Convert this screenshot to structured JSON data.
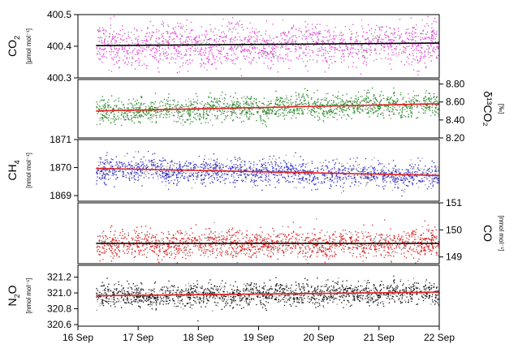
{
  "chart_data": [
    {
      "type": "scatter",
      "panel": "co2",
      "ylabel": "CO",
      "ylabel_subscript": "2",
      "unit": "[µmol mol⁻¹]",
      "axis_side": "left",
      "ylim": [
        400.3,
        400.5
      ],
      "yticks": [
        "400.3",
        "400.4",
        "400.5"
      ],
      "mean_fit": [
        [
          0.3,
          400.402
        ],
        [
          6.0,
          400.41
        ]
      ],
      "point_spread": 0.06,
      "colors": {
        "points_primary": "#e83fd9",
        "points_secondary": "#9a9a9a",
        "fit": "#000000"
      }
    },
    {
      "type": "scatter",
      "panel": "d13co2",
      "ylabel": "δ¹³CO₂",
      "unit": "[‰]",
      "axis_side": "right",
      "ylim": [
        8.2,
        8.85
      ],
      "yticks": [
        "8.20",
        "8.40",
        "8.60",
        "8.80"
      ],
      "mean_fit": [
        [
          0.3,
          8.5
        ],
        [
          6.0,
          8.58
        ]
      ],
      "point_spread": 0.12,
      "colors": {
        "points_primary": "#1e8a1e",
        "points_secondary": "#8a8a8a",
        "fit": "#e02020"
      }
    },
    {
      "type": "scatter",
      "panel": "ch4",
      "ylabel": "CH",
      "ylabel_subscript": "4",
      "unit": "[nmol mol⁻¹]",
      "axis_side": "left",
      "ylim": [
        1868.8,
        1871.0
      ],
      "yticks": [
        "1869",
        "1870",
        "1871"
      ],
      "mean_fit": [
        [
          0.3,
          1869.97
        ],
        [
          6.0,
          1869.72
        ]
      ],
      "point_spread": 0.4,
      "colors": {
        "points_primary": "#2c2cc8",
        "points_secondary": "#9a9a9a",
        "fit": "#e02020"
      }
    },
    {
      "type": "scatter",
      "panel": "co",
      "ylabel": "CO",
      "unit": "[nmol mol⁻¹]",
      "axis_side": "right",
      "ylim": [
        148.75,
        151.0
      ],
      "yticks": [
        "149",
        "150",
        "151"
      ],
      "mean_fit": [
        [
          0.3,
          149.5
        ],
        [
          6.0,
          149.5
        ]
      ],
      "point_spread": 0.45,
      "colors": {
        "points_primary": "#e41a1a",
        "points_secondary": "#8a8a8a",
        "fit": "#000000"
      }
    },
    {
      "type": "scatter",
      "panel": "n2o",
      "ylabel": "N",
      "ylabel_subscript": "2",
      "ylabel_suffix": "O",
      "unit": "[nmol mol⁻¹]",
      "axis_side": "left",
      "ylim": [
        320.58,
        321.35
      ],
      "yticks": [
        "320.6",
        "320.8",
        "321.0",
        "321.2"
      ],
      "mean_fit": [
        [
          0.3,
          320.965
        ],
        [
          6.0,
          321.01
        ]
      ],
      "point_spread": 0.13,
      "colors": {
        "points_primary": "#111111",
        "points_secondary": "#8a8a8a",
        "fit": "#e02020"
      }
    }
  ],
  "x_axis": {
    "labels": [
      "16 Sep",
      "17 Sep",
      "18 Sep",
      "19 Sep",
      "20 Sep",
      "21 Sep",
      "22 Sep"
    ],
    "range_days": [
      0,
      6
    ],
    "data_start_day": 0.3
  }
}
